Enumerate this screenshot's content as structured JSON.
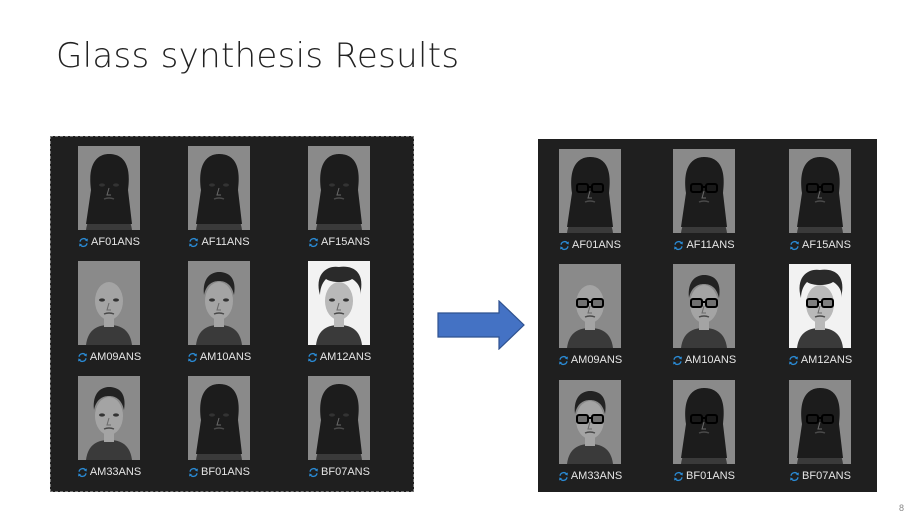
{
  "slide": {
    "title": "Glass synthesis Results",
    "page_number": "8"
  },
  "colors": {
    "panel_bg": "#1f1f1f",
    "caption_text": "#e6e6e6",
    "sync_icon": "#2a8ad4",
    "arrow_fill": "#4472c4",
    "arrow_stroke": "#2f528f"
  },
  "icons": {
    "caption_prefix": "sync-icon",
    "center": "right-arrow-icon",
    "photo": "face-photo"
  },
  "left_panel": {
    "tiles": [
      {
        "label": "AF01ANS",
        "hair": "long",
        "bg": "gray"
      },
      {
        "label": "AF11ANS",
        "hair": "long",
        "bg": "gray"
      },
      {
        "label": "AF15ANS",
        "hair": "long",
        "bg": "gray"
      },
      {
        "label": "AM09ANS",
        "hair": "bald",
        "bg": "gray"
      },
      {
        "label": "AM10ANS",
        "hair": "short",
        "bg": "gray"
      },
      {
        "label": "AM12ANS",
        "hair": "messy",
        "bg": "white"
      },
      {
        "label": "AM33ANS",
        "hair": "short",
        "bg": "gray"
      },
      {
        "label": "BF01ANS",
        "hair": "long",
        "bg": "gray"
      },
      {
        "label": "BF07ANS",
        "hair": "long",
        "bg": "gray"
      }
    ]
  },
  "right_panel": {
    "tiles": [
      {
        "label": "AF01ANS",
        "hair": "long",
        "bg": "gray"
      },
      {
        "label": "AF11ANS",
        "hair": "long",
        "bg": "gray"
      },
      {
        "label": "AF15ANS",
        "hair": "long",
        "bg": "gray"
      },
      {
        "label": "AM09ANS",
        "hair": "bald",
        "bg": "gray"
      },
      {
        "label": "AM10ANS",
        "hair": "short",
        "bg": "gray"
      },
      {
        "label": "AM12ANS",
        "hair": "messy",
        "bg": "white"
      },
      {
        "label": "AM33ANS",
        "hair": "short",
        "bg": "gray"
      },
      {
        "label": "BF01ANS",
        "hair": "long",
        "bg": "gray"
      },
      {
        "label": "BF07ANS",
        "hair": "long",
        "bg": "gray"
      }
    ]
  }
}
